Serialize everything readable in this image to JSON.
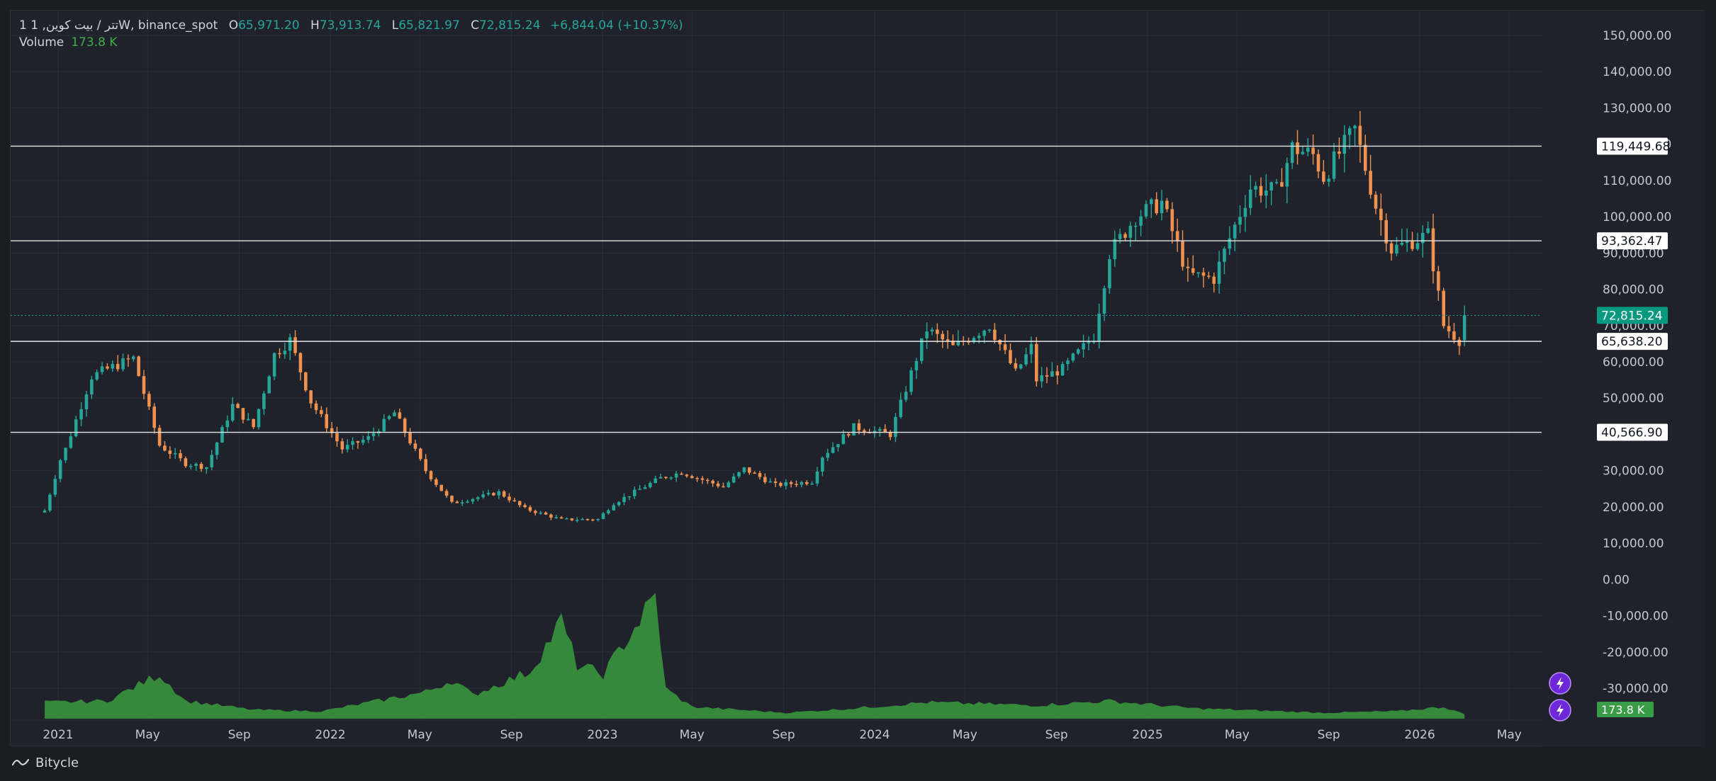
{
  "legend": {
    "symbol": "1 تتر / بیت کوین, 1W, binance_spot",
    "open_label": "O",
    "open": "65,971.20",
    "high_label": "H",
    "high": "73,913.74",
    "low_label": "L",
    "low": "65,821.97",
    "close_label": "C",
    "close": "72,815.24",
    "change": "+6,844.04 (+10.37%)",
    "volume_label": "Volume",
    "volume_value": "173.8 K"
  },
  "footer": {
    "brand": "Bitycle"
  },
  "colors": {
    "up": "#26a69a",
    "down": "#f0914e",
    "volume": "#388e3c",
    "background": "#1f222a",
    "grid": "#2a2e38",
    "axis_text": "#c4c7cf"
  },
  "chart_data": {
    "type": "candlestick",
    "interval": "1W",
    "ylim": [
      -30000,
      150000
    ],
    "yticks": [
      "150,000.00",
      "140,000.00",
      "130,000.00",
      "120,000.00",
      "110,000.00",
      "100,000.00",
      "90,000.00",
      "80,000.00",
      "70,000.00",
      "60,000.00",
      "50,000.00",
      "40,000.00",
      "30,000.00",
      "20,000.00",
      "10,000.00",
      "0.00",
      "-10,000.00",
      "-20,000.00",
      "-30,000.00"
    ],
    "xticks": [
      {
        "label": "2021",
        "date": "2021-01-01"
      },
      {
        "label": "May",
        "date": "2021-05-01"
      },
      {
        "label": "Sep",
        "date": "2021-09-01"
      },
      {
        "label": "2022",
        "date": "2022-01-01"
      },
      {
        "label": "May",
        "date": "2022-05-01"
      },
      {
        "label": "Sep",
        "date": "2022-09-01"
      },
      {
        "label": "2023",
        "date": "2023-01-01"
      },
      {
        "label": "May",
        "date": "2023-05-01"
      },
      {
        "label": "Sep",
        "date": "2023-09-01"
      },
      {
        "label": "2024",
        "date": "2024-01-01"
      },
      {
        "label": "May",
        "date": "2024-05-01"
      },
      {
        "label": "Sep",
        "date": "2024-09-01"
      },
      {
        "label": "2025",
        "date": "2025-01-01"
      },
      {
        "label": "May",
        "date": "2025-05-01"
      },
      {
        "label": "Sep",
        "date": "2025-09-01"
      },
      {
        "label": "2026",
        "date": "2026-01-01"
      },
      {
        "label": "May",
        "date": "2026-05-01"
      }
    ],
    "horizontal_levels": [
      {
        "value": 119449.68,
        "label": "119,449.68"
      },
      {
        "value": 93362.47,
        "label": "93,362.47"
      },
      {
        "value": 65638.2,
        "label": "65,638.20"
      },
      {
        "value": 40566.9,
        "label": "40,566.90"
      }
    ],
    "last_price": {
      "value": 72815.24,
      "label": "72,815.24"
    },
    "last_volume": {
      "label": "173.8 K"
    },
    "price_anchors": [
      [
        "2020-12-14",
        19000
      ],
      [
        "2021-01-04",
        33000
      ],
      [
        "2021-01-11",
        36000
      ],
      [
        "2021-02-15",
        56000
      ],
      [
        "2021-03-08",
        58000
      ],
      [
        "2021-04-12",
        61000
      ],
      [
        "2021-05-17",
        37000
      ],
      [
        "2021-06-21",
        32000
      ],
      [
        "2021-07-19",
        31000
      ],
      [
        "2021-08-23",
        48000
      ],
      [
        "2021-09-20",
        42000
      ],
      [
        "2021-10-18",
        62000
      ],
      [
        "2021-11-08",
        66000
      ],
      [
        "2021-12-06",
        49000
      ],
      [
        "2022-01-17",
        36000
      ],
      [
        "2022-02-21",
        39000
      ],
      [
        "2022-03-28",
        46000
      ],
      [
        "2022-05-09",
        30000
      ],
      [
        "2022-06-13",
        21000
      ],
      [
        "2022-08-15",
        24000
      ],
      [
        "2022-09-19",
        19500
      ],
      [
        "2022-11-07",
        16500
      ],
      [
        "2022-12-26",
        16600
      ],
      [
        "2023-01-16",
        21000
      ],
      [
        "2023-03-20",
        28000
      ],
      [
        "2023-04-17",
        29500
      ],
      [
        "2023-06-12",
        25500
      ],
      [
        "2023-07-10",
        30500
      ],
      [
        "2023-08-21",
        26000
      ],
      [
        "2023-10-09",
        27000
      ],
      [
        "2023-10-23",
        34000
      ],
      [
        "2023-12-04",
        42000
      ],
      [
        "2024-01-22",
        40000
      ],
      [
        "2024-02-26",
        61000
      ],
      [
        "2024-03-11",
        69000
      ],
      [
        "2024-04-15",
        64000
      ],
      [
        "2024-06-03",
        70000
      ],
      [
        "2024-07-08",
        57000
      ],
      [
        "2024-07-29",
        64000
      ],
      [
        "2024-08-05",
        55000
      ],
      [
        "2024-09-09",
        58000
      ],
      [
        "2024-10-21",
        67000
      ],
      [
        "2024-11-11",
        90000
      ],
      [
        "2024-12-16",
        100000
      ],
      [
        "2025-01-20",
        104000
      ],
      [
        "2025-02-24",
        84000
      ],
      [
        "2025-03-31",
        83000
      ],
      [
        "2025-04-21",
        94000
      ],
      [
        "2025-05-19",
        108000
      ],
      [
        "2025-06-23",
        107000
      ],
      [
        "2025-07-14",
        119000
      ],
      [
        "2025-08-11",
        117000
      ],
      [
        "2025-08-25",
        111000
      ],
      [
        "2025-10-06",
        124000
      ],
      [
        "2025-11-03",
        103000
      ],
      [
        "2025-11-24",
        91000
      ],
      [
        "2026-01-12",
        95000
      ],
      [
        "2026-02-02",
        70000
      ],
      [
        "2026-02-23",
        65971
      ],
      [
        "2026-03-02",
        72815
      ]
    ],
    "volume_anchors": [
      [
        "2020-12-14",
        0.55
      ],
      [
        "2021-03-08",
        0.6
      ],
      [
        "2021-05-17",
        1.5
      ],
      [
        "2021-06-21",
        0.6
      ],
      [
        "2021-09-20",
        0.3
      ],
      [
        "2021-12-20",
        0.25
      ],
      [
        "2022-05-09",
        0.9
      ],
      [
        "2022-06-13",
        1.3
      ],
      [
        "2022-07-11",
        0.8
      ],
      [
        "2022-09-26",
        1.6
      ],
      [
        "2022-11-07",
        3.3
      ],
      [
        "2022-11-28",
        1.8
      ],
      [
        "2023-01-02",
        1.5
      ],
      [
        "2023-03-13",
        4.1
      ],
      [
        "2023-03-27",
        1.0
      ],
      [
        "2023-05-01",
        0.4
      ],
      [
        "2023-09-04",
        0.2
      ],
      [
        "2023-12-04",
        0.35
      ],
      [
        "2024-03-11",
        0.55
      ],
      [
        "2024-08-05",
        0.45
      ],
      [
        "2024-11-11",
        0.6
      ],
      [
        "2025-03-03",
        0.35
      ],
      [
        "2025-08-25",
        0.2
      ],
      [
        "2025-12-01",
        0.25
      ],
      [
        "2026-02-02",
        0.4
      ],
      [
        "2026-03-02",
        0.15
      ]
    ]
  }
}
